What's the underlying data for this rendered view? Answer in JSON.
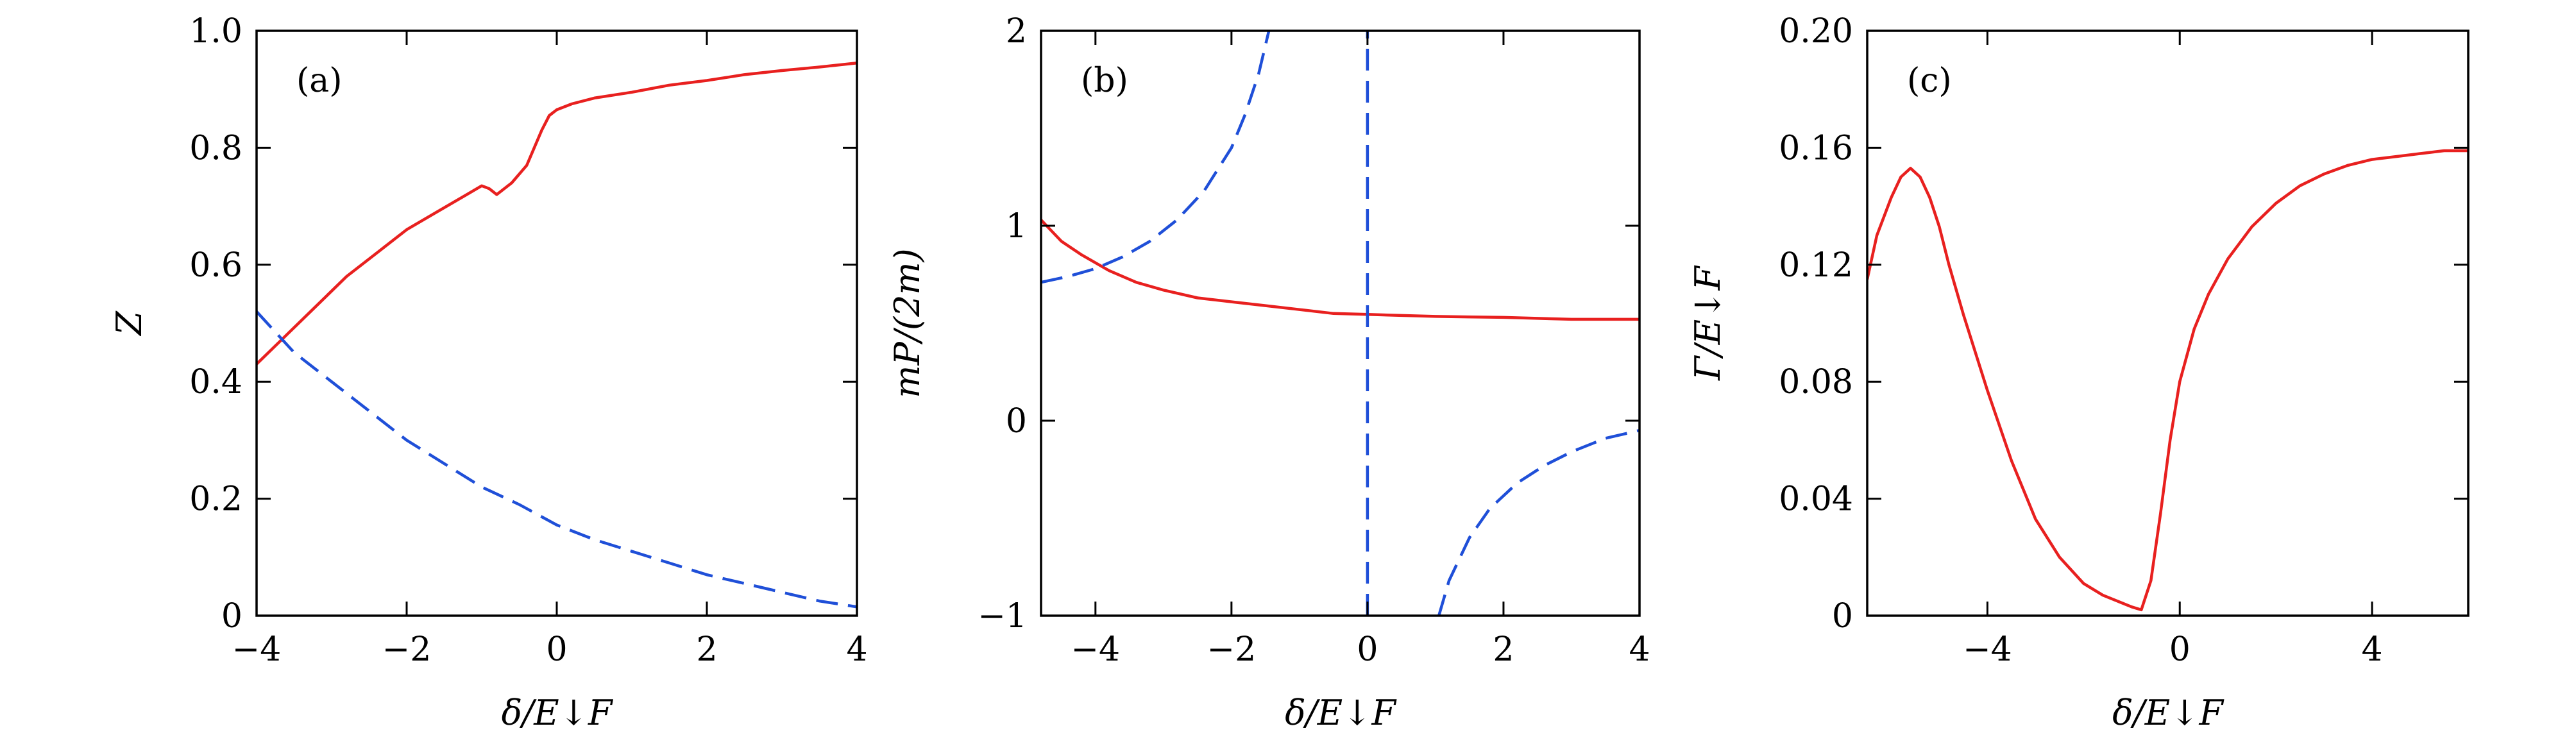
{
  "chart_data": [
    {
      "type": "line",
      "panel_label": "(a)",
      "xlabel": "δ/E↓F",
      "ylabel": "Z",
      "xlim": [
        -4,
        4
      ],
      "ylim": [
        0,
        1.0
      ],
      "xticks": [
        -4,
        -2,
        0,
        2,
        4
      ],
      "xtick_labels": [
        "−4",
        "−2",
        "0",
        "2",
        "4"
      ],
      "yticks": [
        0,
        0.2,
        0.4,
        0.6,
        0.8,
        1.0
      ],
      "ytick_labels": [
        "0",
        "0.2",
        "0.4",
        "0.6",
        "0.8",
        "1.0"
      ],
      "grid": false,
      "series": [
        {
          "style": "solid",
          "color": "#e8201f",
          "x": [
            -4,
            -3.6,
            -3.2,
            -2.8,
            -2.4,
            -2.0,
            -1.6,
            -1.2,
            -1.0,
            -0.9,
            -0.8,
            -0.6,
            -0.4,
            -0.3,
            -0.2,
            -0.1,
            0.0,
            0.2,
            0.5,
            1.0,
            1.5,
            2.0,
            2.5,
            3.0,
            3.5,
            4.0
          ],
          "y": [
            0.43,
            0.48,
            0.53,
            0.58,
            0.62,
            0.66,
            0.69,
            0.72,
            0.735,
            0.73,
            0.72,
            0.74,
            0.77,
            0.8,
            0.83,
            0.855,
            0.865,
            0.875,
            0.885,
            0.895,
            0.907,
            0.915,
            0.925,
            0.932,
            0.938,
            0.945
          ]
        },
        {
          "style": "dashed",
          "color": "#1f4fd8",
          "x": [
            -4,
            -3.5,
            -3.0,
            -2.5,
            -2.0,
            -1.5,
            -1.0,
            -0.5,
            0.0,
            0.5,
            1.0,
            1.5,
            2.0,
            2.5,
            3.0,
            3.5,
            4.0
          ],
          "y": [
            0.52,
            0.45,
            0.4,
            0.35,
            0.3,
            0.26,
            0.22,
            0.19,
            0.155,
            0.13,
            0.11,
            0.09,
            0.07,
            0.055,
            0.04,
            0.025,
            0.015
          ]
        }
      ]
    },
    {
      "type": "line",
      "panel_label": "(b)",
      "xlabel": "δ/E↓F",
      "ylabel": "mP/(2m)",
      "xlim": [
        -4.8,
        4
      ],
      "ylim": [
        -1,
        2
      ],
      "xticks": [
        -4,
        -2,
        0,
        2,
        4
      ],
      "xtick_labels": [
        "−4",
        "−2",
        "0",
        "2",
        "4"
      ],
      "yticks": [
        -1,
        0,
        1,
        2
      ],
      "ytick_labels": [
        "−1",
        "0",
        "1",
        "2"
      ],
      "grid": false,
      "series": [
        {
          "style": "solid",
          "color": "#e8201f",
          "x": [
            -4.8,
            -4.5,
            -4.2,
            -3.8,
            -3.4,
            -3.0,
            -2.5,
            -2.0,
            -1.5,
            -1.0,
            -0.5,
            0.0,
            1.0,
            2.0,
            3.0,
            4.0
          ],
          "y": [
            1.03,
            0.92,
            0.85,
            0.77,
            0.71,
            0.67,
            0.63,
            0.61,
            0.59,
            0.57,
            0.55,
            0.545,
            0.535,
            0.53,
            0.52,
            0.52
          ]
        },
        {
          "style": "dashed",
          "color": "#1f4fd8",
          "x": [
            -4.8,
            -4.4,
            -4.0,
            -3.6,
            -3.2,
            -2.8,
            -2.4,
            -2.0,
            -1.8,
            -1.6,
            -1.45
          ],
          "y": [
            0.71,
            0.74,
            0.78,
            0.84,
            0.92,
            1.03,
            1.18,
            1.4,
            1.57,
            1.78,
            2.0
          ]
        },
        {
          "style": "dashed",
          "color": "#1f4fd8",
          "x": [
            0,
            0
          ],
          "y": [
            -1,
            2
          ]
        },
        {
          "style": "dashed",
          "color": "#1f4fd8",
          "x": [
            1.05,
            1.2,
            1.5,
            1.8,
            2.2,
            2.6,
            3.0,
            3.5,
            4.0
          ],
          "y": [
            -1.0,
            -0.82,
            -0.6,
            -0.45,
            -0.32,
            -0.23,
            -0.16,
            -0.09,
            -0.05
          ]
        }
      ]
    },
    {
      "type": "line",
      "panel_label": "(c)",
      "xlabel": "δ/E↓F",
      "ylabel": "Γ/E↓F",
      "xlim": [
        -6.5,
        6
      ],
      "ylim": [
        0,
        0.2
      ],
      "xticks": [
        -4,
        0,
        4
      ],
      "xtick_labels": [
        "−4",
        "0",
        "4"
      ],
      "yticks": [
        0,
        0.04,
        0.08,
        0.12,
        0.16,
        0.2
      ],
      "ytick_labels": [
        "0",
        "0.04",
        "0.08",
        "0.12",
        "0.16",
        "0.20"
      ],
      "grid": false,
      "series": [
        {
          "style": "solid",
          "color": "#e8201f",
          "x": [
            -6.5,
            -6.3,
            -6.0,
            -5.8,
            -5.6,
            -5.4,
            -5.2,
            -5.0,
            -4.8,
            -4.5,
            -4.0,
            -3.5,
            -3.0,
            -2.5,
            -2.0,
            -1.6,
            -1.3,
            -1.0,
            -0.8,
            -0.6,
            -0.4,
            -0.2,
            0.0,
            0.3,
            0.6,
            1.0,
            1.5,
            2.0,
            2.5,
            3.0,
            3.5,
            4.0,
            4.5,
            5.0,
            5.5,
            6.0
          ],
          "y": [
            0.115,
            0.13,
            0.143,
            0.15,
            0.153,
            0.15,
            0.143,
            0.133,
            0.12,
            0.103,
            0.077,
            0.053,
            0.033,
            0.02,
            0.011,
            0.007,
            0.005,
            0.003,
            0.002,
            0.012,
            0.035,
            0.06,
            0.08,
            0.098,
            0.11,
            0.122,
            0.133,
            0.141,
            0.147,
            0.151,
            0.154,
            0.156,
            0.157,
            0.158,
            0.159,
            0.159
          ]
        }
      ]
    }
  ]
}
